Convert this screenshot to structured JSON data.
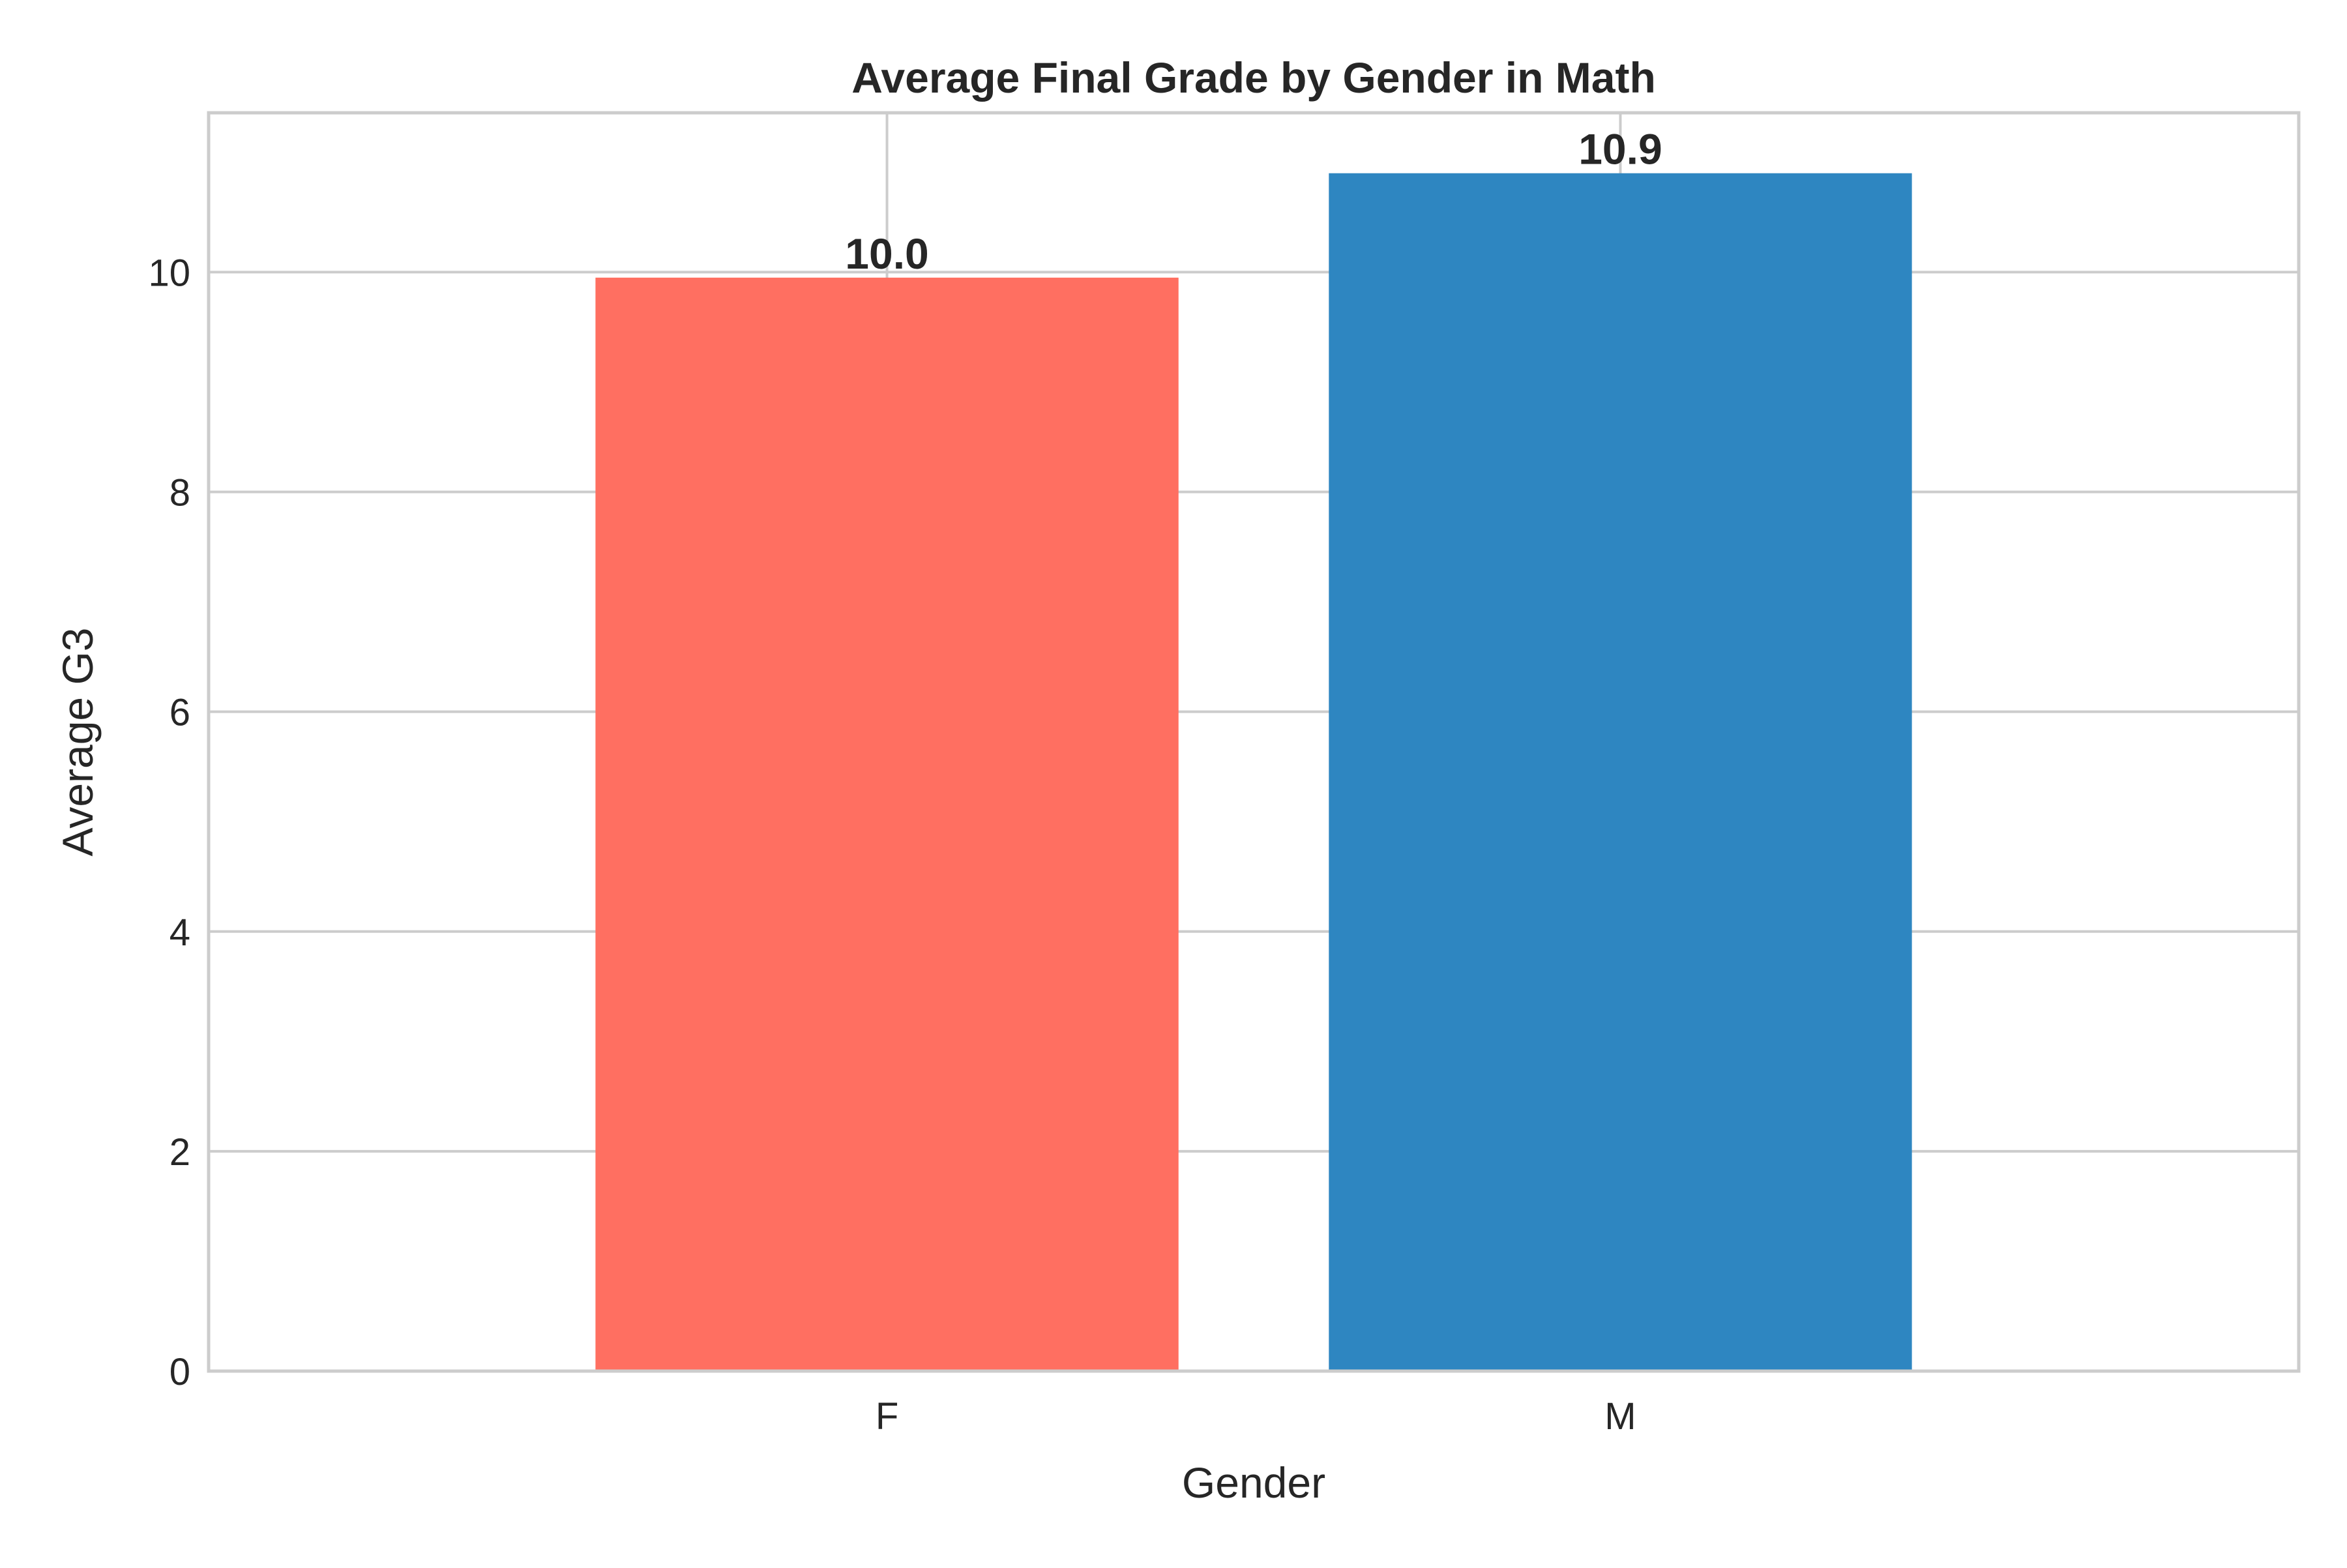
{
  "chart_data": {
    "type": "bar",
    "title": "Average Final Grade by Gender in Math",
    "xlabel": "Gender",
    "ylabel": "Average G3",
    "categories": [
      "F",
      "M"
    ],
    "values": [
      9.95,
      10.9
    ],
    "data_labels": [
      "10.0",
      "10.9"
    ],
    "bar_colors": [
      "#ff6f61",
      "#2e86c1"
    ],
    "ylim": [
      0,
      11.45
    ],
    "yticks": [
      0,
      2,
      4,
      6,
      8,
      10
    ],
    "grid": true,
    "grid_color": "#cccccc",
    "frame_color": "#cccccc",
    "background": "#ffffff",
    "legend": "none"
  }
}
